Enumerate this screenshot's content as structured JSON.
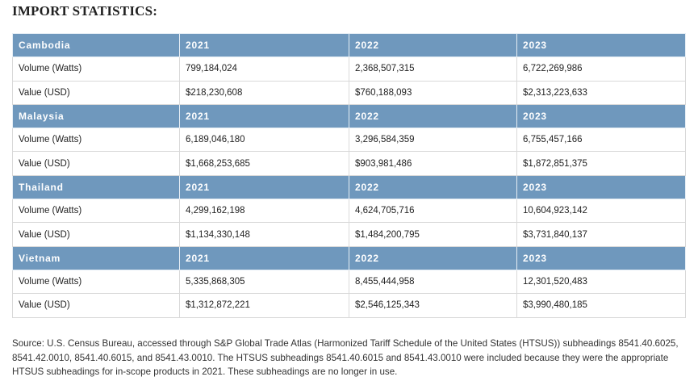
{
  "title": "IMPORT STATISTICS:",
  "table": {
    "sections": [
      {
        "header": [
          "Cambodia",
          "2021",
          "2022",
          "2023"
        ],
        "rows": [
          [
            "Volume (Watts)",
            "799,184,024",
            "2,368,507,315",
            "6,722,269,986"
          ],
          [
            "Value (USD)",
            "$218,230,608",
            "$760,188,093",
            "$2,313,223,633"
          ]
        ]
      },
      {
        "header": [
          "Malaysia",
          "2021",
          "2022",
          "2023"
        ],
        "rows": [
          [
            "Volume (Watts)",
            "6,189,046,180",
            "3,296,584,359",
            "6,755,457,166"
          ],
          [
            "Value (USD)",
            "$1,668,253,685",
            "$903,981,486",
            "$1,872,851,375"
          ]
        ]
      },
      {
        "header": [
          "Thailand",
          "2021",
          "2022",
          "2023"
        ],
        "rows": [
          [
            "Volume (Watts)",
            "4,299,162,198",
            "4,624,705,716",
            "10,604,923,142"
          ],
          [
            "Value (USD)",
            "$1,134,330,148",
            "$1,484,200,795",
            "$3,731,840,137"
          ]
        ]
      },
      {
        "header": [
          "Vietnam",
          "2021",
          "2022",
          "2023"
        ],
        "rows": [
          [
            "Volume (Watts)",
            "5,335,868,305",
            "8,455,444,958",
            "12,301,520,483"
          ],
          [
            "Value (USD)",
            "$1,312,872,221",
            "$2,546,125,343",
            "$3,990,480,185"
          ]
        ]
      }
    ]
  },
  "source": "Source: U.S. Census Bureau, accessed through S&P Global Trade Atlas (Harmonized Tariff Schedule of the United States (HTSUS)) subheadings 8541.40.6025, 8541.42.0010, 8541.40.6015, and 8541.43.0010. The HTSUS subheadings 8541.40.6015 and 8541.43.0010 were included because they were the appropriate HTSUS subheadings for in-scope products in 2021. These subheadings are no longer in use."
}
